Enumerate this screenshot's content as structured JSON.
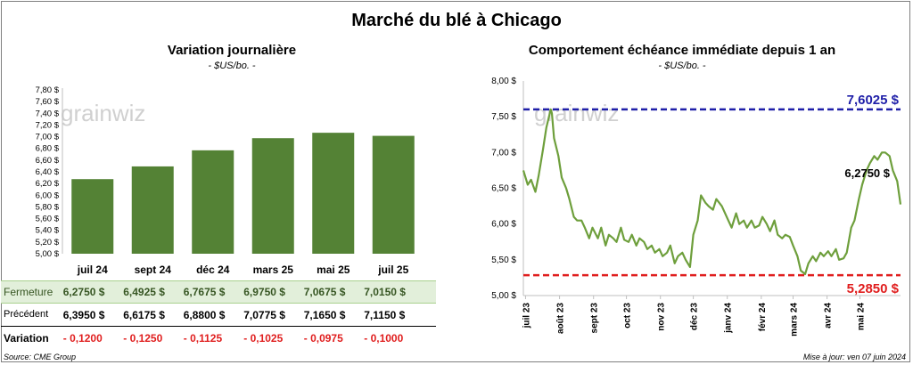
{
  "page_title": "Marché du blé à Chicago",
  "watermark": "grainwiz",
  "source": "Source: CME Group",
  "updated": "Mise à jour: ven 07 juin 2024",
  "colors": {
    "bar": "#548235",
    "line": "#6e9f3c",
    "upper": "#1f1fa8",
    "lower": "#e01e1e",
    "row_hl": "#e2efda",
    "negative": "#e01e1e"
  },
  "left": {
    "title": "Variation  journalière",
    "unit": "- $US/bo. -",
    "table": {
      "rows": [
        {
          "label": "Fermeture",
          "values": [
            "6,2750  $",
            "6,4925  $",
            "6,7675  $",
            "6,9750  $",
            "7,0675  $",
            "7,0150  $"
          ]
        },
        {
          "label": "Précédent",
          "values": [
            "6,3950  $",
            "6,6175  $",
            "6,8800  $",
            "7,0775  $",
            "7,1650  $",
            "7,1150  $"
          ]
        },
        {
          "label": "Variation",
          "values": [
            "- 0,1200",
            "- 0,1250",
            "- 0,1125",
            "- 0,1025",
            "- 0,0975",
            "- 0,1000"
          ]
        }
      ]
    }
  },
  "right": {
    "title": "Comportement  échéance immédiate depuis 1 an",
    "unit": "- $US/bo. -"
  },
  "chart_data": [
    {
      "type": "bar",
      "categories": [
        "juil 24",
        "sept 24",
        "déc 24",
        "mars 25",
        "mai 25",
        "juil 25"
      ],
      "values": [
        6.275,
        6.4925,
        6.7675,
        6.975,
        7.0675,
        7.015
      ],
      "ylim": [
        5.0,
        7.8
      ],
      "yticks": [
        "5,00 $",
        "5,20 $",
        "5,40 $",
        "5,60 $",
        "5,80 $",
        "6,00 $",
        "6,20 $",
        "6,40 $",
        "6,60 $",
        "6,80 $",
        "7,00 $",
        "7,20 $",
        "7,40 $",
        "7,60 $",
        "7,80 $"
      ],
      "ytick_values": [
        5.0,
        5.2,
        5.4,
        5.6,
        5.8,
        6.0,
        6.2,
        6.4,
        6.6,
        6.8,
        7.0,
        7.2,
        7.4,
        7.6,
        7.8
      ],
      "grid": false
    },
    {
      "type": "line",
      "ylim": [
        5.0,
        8.0
      ],
      "yticks": [
        "5,00 $",
        "5,50 $",
        "6,00 $",
        "6,50 $",
        "7,00 $",
        "7,50 $",
        "8,00 $"
      ],
      "ytick_values": [
        5.0,
        5.5,
        6.0,
        6.5,
        7.0,
        7.5,
        8.0
      ],
      "xticks": [
        "juil 23",
        "août 23",
        "sept 23",
        "oct 23",
        "nov 23",
        "déc 23",
        "janv 24",
        "févr 24",
        "mars 24",
        "avr 24",
        "mai 24"
      ],
      "xtick_dates": [
        "2023-07-01",
        "2023-08-01",
        "2023-09-01",
        "2023-10-01",
        "2023-11-01",
        "2023-12-01",
        "2024-01-01",
        "2024-02-01",
        "2024-03-01",
        "2024-04-01",
        "2024-05-01"
      ],
      "xlim": [
        "2023-06-29",
        "2024-06-07"
      ],
      "series": [
        {
          "dates": [
            "2023-06-29",
            "2023-07-03",
            "2023-07-06",
            "2023-07-10",
            "2023-07-13",
            "2023-07-17",
            "2023-07-20",
            "2023-07-24",
            "2023-07-25",
            "2023-07-27",
            "2023-07-31",
            "2023-08-03",
            "2023-08-07",
            "2023-08-10",
            "2023-08-14",
            "2023-08-17",
            "2023-08-21",
            "2023-08-24",
            "2023-08-28",
            "2023-08-31",
            "2023-09-05",
            "2023-09-08",
            "2023-09-12",
            "2023-09-15",
            "2023-09-19",
            "2023-09-22",
            "2023-09-26",
            "2023-09-29",
            "2023-10-03",
            "2023-10-06",
            "2023-10-10",
            "2023-10-13",
            "2023-10-17",
            "2023-10-20",
            "2023-10-24",
            "2023-10-27",
            "2023-10-31",
            "2023-11-03",
            "2023-11-07",
            "2023-11-10",
            "2023-11-14",
            "2023-11-17",
            "2023-11-21",
            "2023-11-24",
            "2023-11-28",
            "2023-12-01",
            "2023-12-05",
            "2023-12-08",
            "2023-12-12",
            "2023-12-15",
            "2023-12-19",
            "2023-12-22",
            "2023-12-27",
            "2024-01-02",
            "2024-01-05",
            "2024-01-09",
            "2024-01-12",
            "2024-01-16",
            "2024-01-19",
            "2024-01-23",
            "2024-01-26",
            "2024-01-30",
            "2024-02-02",
            "2024-02-06",
            "2024-02-09",
            "2024-02-13",
            "2024-02-16",
            "2024-02-20",
            "2024-02-23",
            "2024-02-27",
            "2024-03-01",
            "2024-03-05",
            "2024-03-08",
            "2024-03-12",
            "2024-03-15",
            "2024-03-19",
            "2024-03-22",
            "2024-03-26",
            "2024-03-29",
            "2024-04-02",
            "2024-04-05",
            "2024-04-09",
            "2024-04-12",
            "2024-04-16",
            "2024-04-19",
            "2024-04-23",
            "2024-04-26",
            "2024-04-30",
            "2024-05-03",
            "2024-05-07",
            "2024-05-10",
            "2024-05-14",
            "2024-05-17",
            "2024-05-21",
            "2024-05-24",
            "2024-05-28",
            "2024-05-31",
            "2024-06-04",
            "2024-06-07"
          ],
          "values": [
            6.75,
            6.55,
            6.62,
            6.45,
            6.68,
            7.05,
            7.35,
            7.6025,
            7.55,
            7.2,
            6.95,
            6.65,
            6.5,
            6.35,
            6.1,
            6.05,
            6.05,
            5.95,
            5.8,
            5.95,
            5.8,
            5.95,
            5.7,
            5.85,
            5.8,
            5.75,
            5.95,
            5.78,
            5.75,
            5.85,
            5.7,
            5.8,
            5.75,
            5.65,
            5.7,
            5.6,
            5.65,
            5.55,
            5.6,
            5.7,
            5.45,
            5.55,
            5.6,
            5.5,
            5.4,
            5.85,
            6.05,
            6.4,
            6.3,
            6.25,
            6.2,
            6.35,
            6.25,
            6.05,
            5.95,
            6.15,
            6.0,
            6.05,
            5.95,
            6.05,
            5.95,
            5.98,
            6.1,
            6.0,
            5.9,
            6.05,
            5.85,
            5.8,
            5.85,
            5.82,
            5.7,
            5.55,
            5.35,
            5.3,
            5.45,
            5.55,
            5.48,
            5.6,
            5.55,
            5.62,
            5.55,
            5.65,
            5.5,
            5.52,
            5.6,
            5.95,
            6.05,
            6.35,
            6.55,
            6.75,
            6.85,
            6.95,
            6.9,
            7.0,
            7.0,
            6.95,
            6.75,
            6.6,
            6.275
          ]
        }
      ],
      "reference_lines": [
        {
          "value": 7.6025,
          "label": "7,6025 $",
          "color": "#1f1fa8"
        },
        {
          "value": 5.285,
          "label": "5,2850 $",
          "color": "#e01e1e"
        }
      ],
      "last_label": "6,2750 $",
      "grid": false
    }
  ]
}
